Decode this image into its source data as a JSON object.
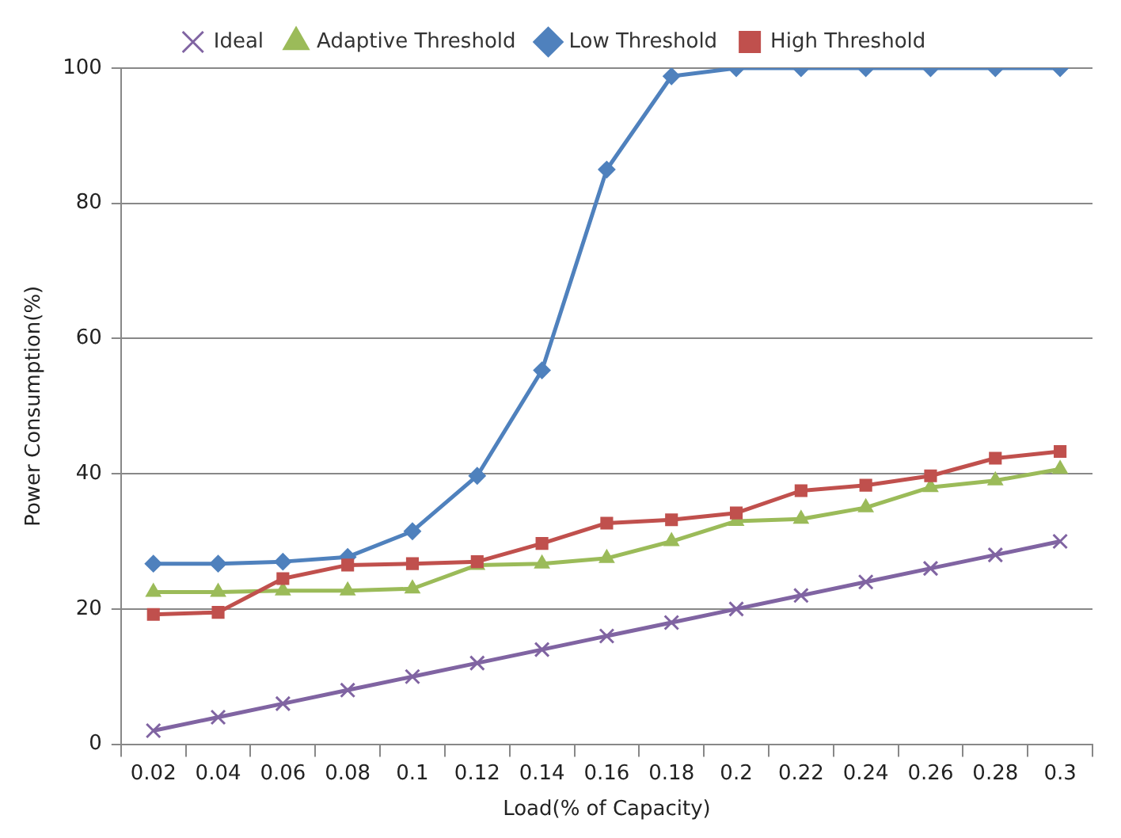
{
  "chart_data": {
    "type": "line",
    "xlabel": "Load(% of Capacity)",
    "ylabel": "Power Consumption(%)",
    "categories": [
      "0.02",
      "0.04",
      "0.06",
      "0.08",
      "0.1",
      "0.12",
      "0.14",
      "0.16",
      "0.18",
      "0.2",
      "0.22",
      "0.24",
      "0.26",
      "0.28",
      "0.3"
    ],
    "series": [
      {
        "name": "Ideal",
        "color": "#8064a2",
        "marker": "cross",
        "values": [
          2,
          4,
          6,
          8,
          10,
          12,
          14,
          16,
          18,
          20,
          22,
          24,
          26,
          28,
          30
        ]
      },
      {
        "name": "Adaptive Threshold",
        "color": "#9bbb59",
        "marker": "triangle",
        "values": [
          22.5,
          22.5,
          22.7,
          22.7,
          23,
          26.5,
          26.7,
          27.5,
          30,
          33,
          33.3,
          35,
          38,
          39,
          40.7
        ]
      },
      {
        "name": "Low Threshold",
        "color": "#4f81bd",
        "marker": "diamond",
        "values": [
          26.7,
          26.7,
          27,
          27.7,
          31.5,
          39.7,
          55.3,
          85,
          98.8,
          100,
          100,
          100,
          100,
          100,
          100
        ]
      },
      {
        "name": "High Threshold",
        "color": "#c0504d",
        "marker": "square",
        "values": [
          19.2,
          19.5,
          24.5,
          26.5,
          26.7,
          27,
          29.7,
          32.7,
          33.2,
          34.2,
          37.5,
          38.3,
          39.7,
          42.3,
          43.3
        ]
      }
    ],
    "ylim": [
      0,
      100
    ],
    "yticks": [
      0,
      20,
      40,
      60,
      80,
      100
    ],
    "grid": "y",
    "legend": "top"
  }
}
